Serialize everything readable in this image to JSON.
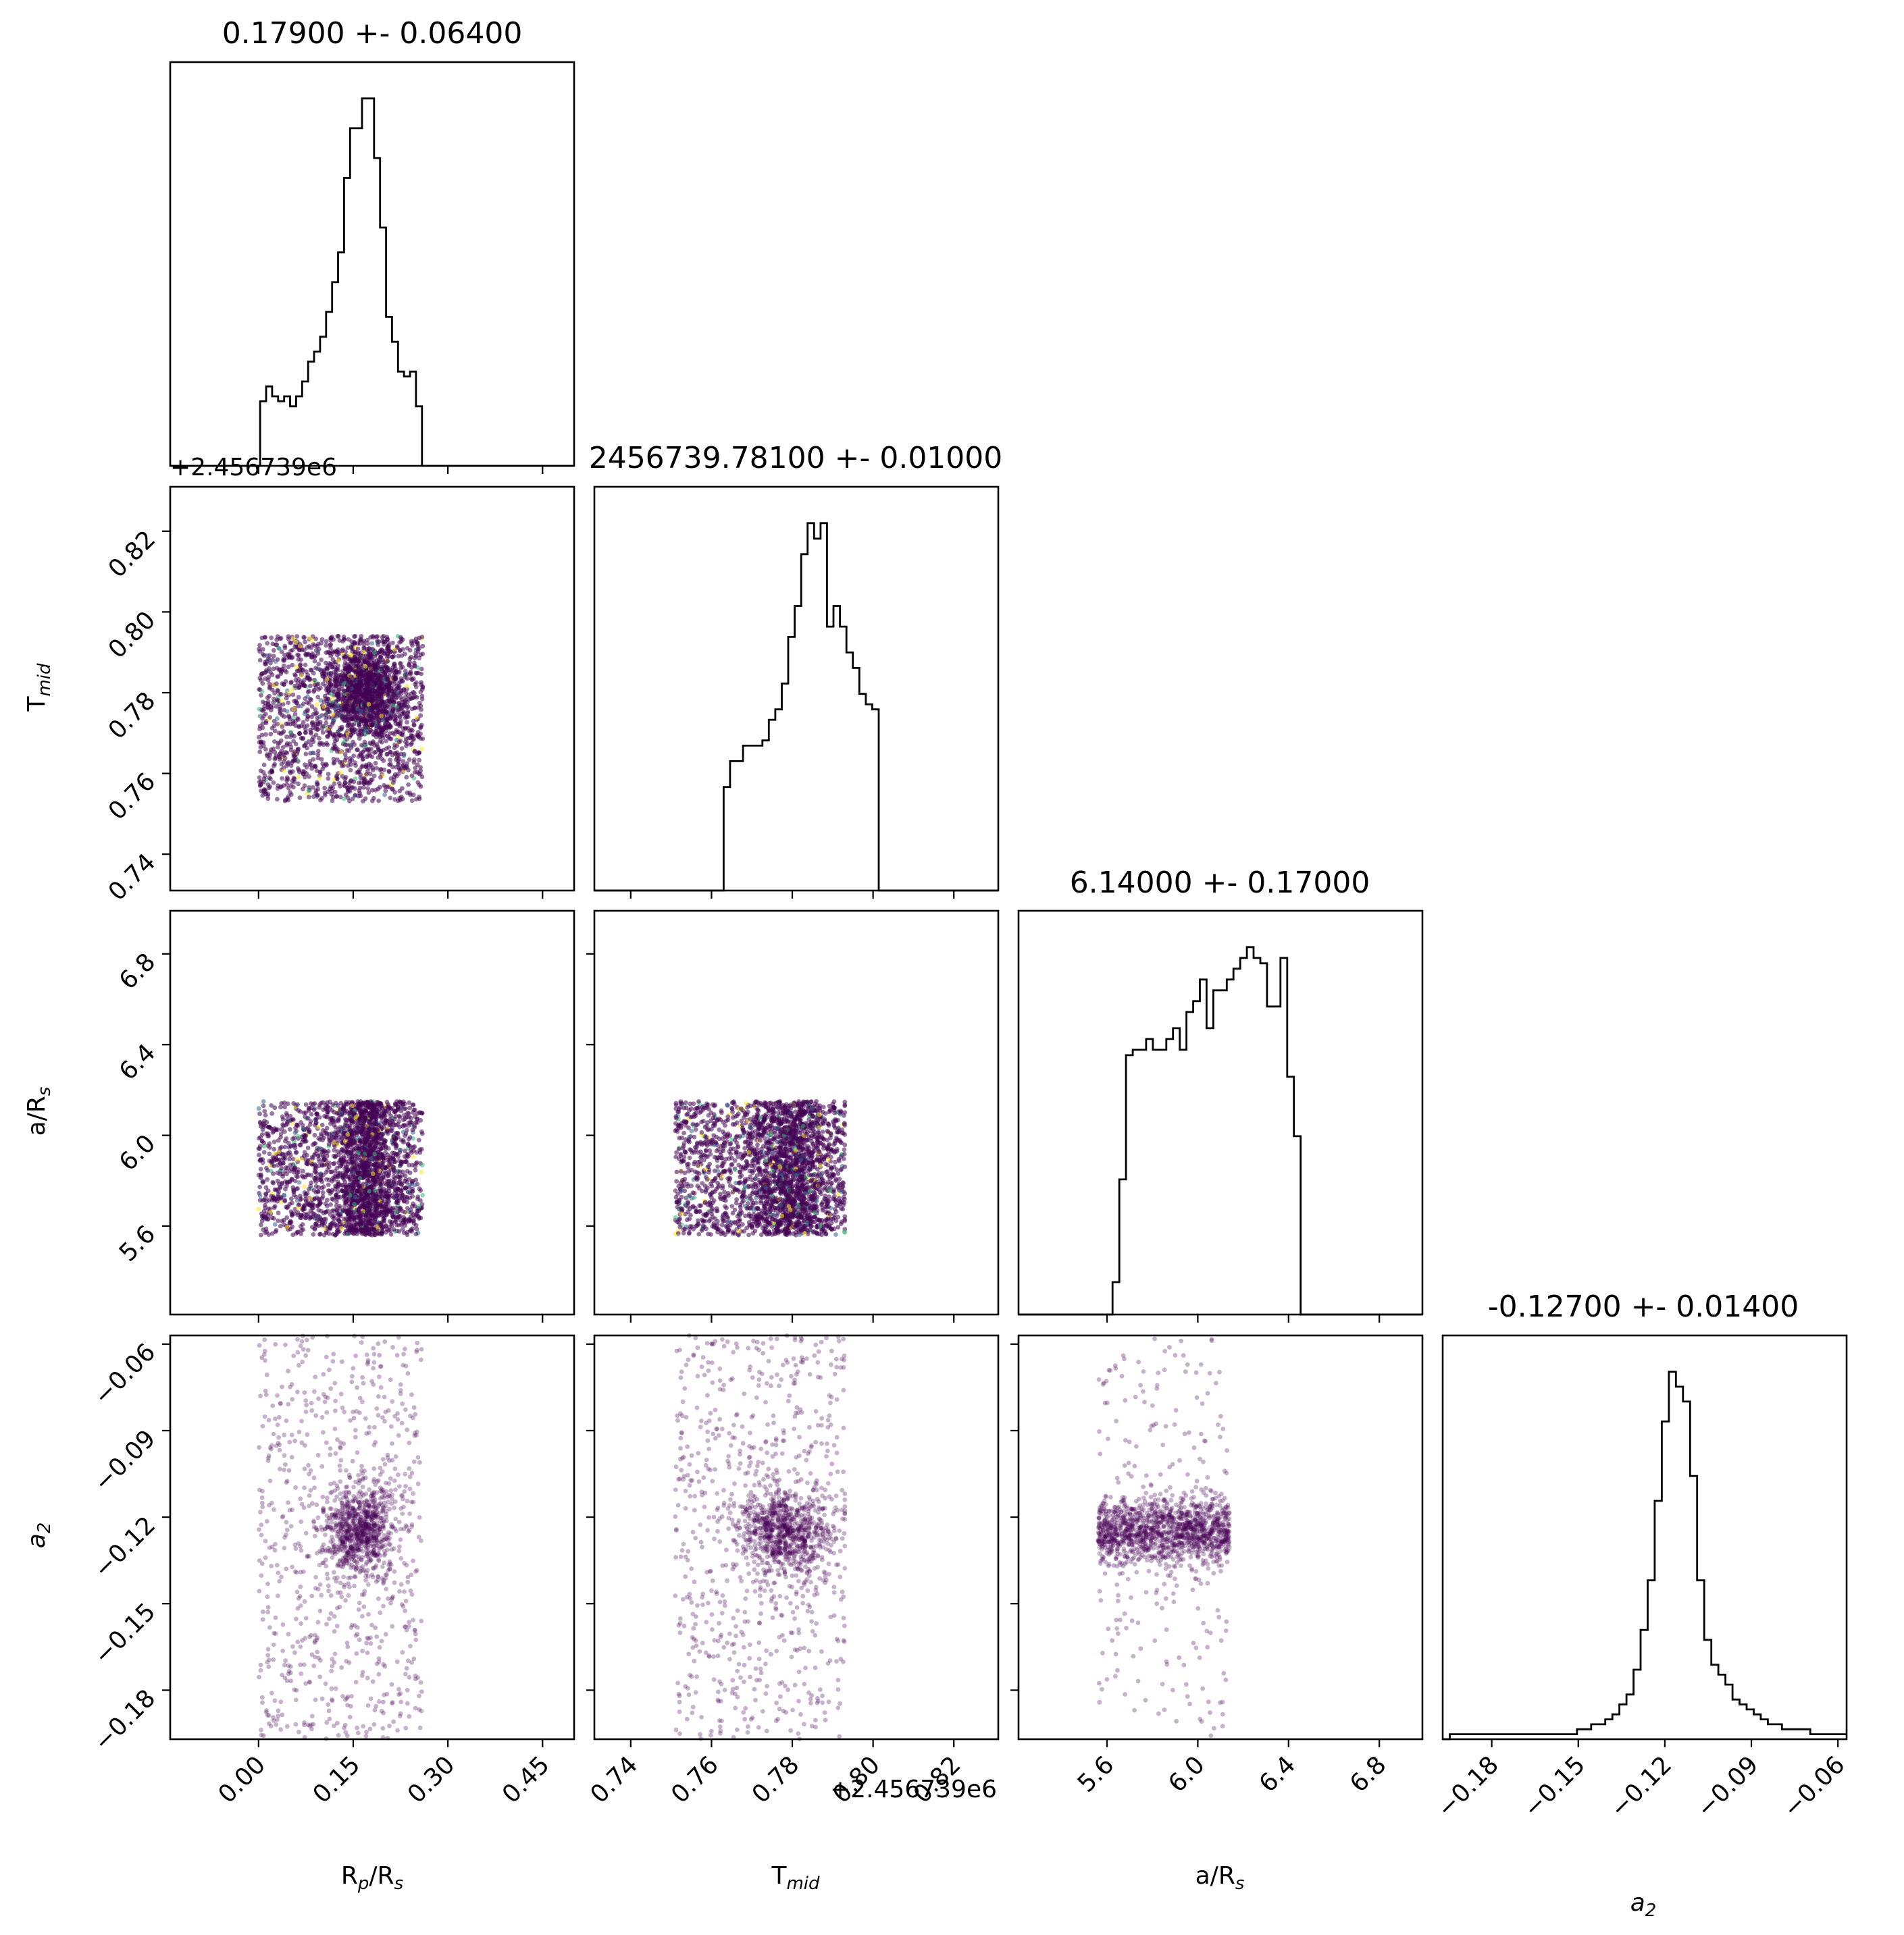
{
  "chart_data": {
    "type": "scatter",
    "kind": "corner-plot",
    "parameters": [
      {
        "key": "rp",
        "label": "R",
        "label_sub1": "p",
        "label_mid": "/R",
        "label_sub2": "s",
        "title": "0.17900 +- 0.06400",
        "range": [
          -0.14,
          0.5
        ],
        "ticks": [
          0.0,
          0.15,
          0.3,
          0.45
        ],
        "tick_labels": [
          "0.00",
          "0.15",
          "0.30",
          "0.45"
        ],
        "hist_bins": [
          -0.14,
          0.5
        ],
        "hist_values": []
      },
      {
        "key": "tmid",
        "label": "T",
        "label_sub1": "mid",
        "title": "2456739.78100 +- 0.01000",
        "offset": "+2.456739e6",
        "range": [
          0.731,
          0.831
        ],
        "ticks": [
          0.74,
          0.76,
          0.78,
          0.8,
          0.82
        ],
        "tick_labels": [
          "0.74",
          "0.76",
          "0.78",
          "0.80",
          "0.82"
        ]
      },
      {
        "key": "ars",
        "label": "a/R",
        "label_sub1": "s",
        "title": "6.14000 +- 0.17000",
        "range": [
          5.21,
          6.99
        ],
        "ticks": [
          5.6,
          6.0,
          6.4,
          6.8
        ],
        "tick_labels": [
          "5.6",
          "6.0",
          "6.4",
          "6.8"
        ]
      },
      {
        "key": "a2",
        "label": "a",
        "label_sub1": "2",
        "title": "-0.12700 +- 0.01400",
        "range": [
          -0.197,
          -0.057
        ],
        "ticks": [
          -0.18,
          -0.15,
          -0.12,
          -0.09,
          -0.06
        ],
        "tick_labels": [
          "−0.18",
          "−0.15",
          "−0.12",
          "−0.09",
          "−0.06"
        ]
      }
    ],
    "histograms": {
      "rp": {
        "edges_start": -0.14,
        "bin_width": 0.0095,
        "values": [
          0,
          0,
          0,
          0,
          0,
          0,
          0,
          0,
          0,
          0,
          0,
          0,
          0,
          0,
          0,
          13,
          16,
          14,
          13,
          14,
          12,
          14,
          17,
          21,
          23,
          26,
          31,
          37,
          43,
          58,
          68,
          68,
          74,
          74,
          62,
          48,
          30,
          25,
          19,
          18,
          19,
          12,
          0,
          0,
          0,
          0,
          0,
          0,
          0,
          0,
          0,
          0,
          0,
          0,
          0,
          0,
          0,
          0,
          0,
          0,
          0,
          0,
          0,
          0,
          0,
          0,
          0,
          0
        ]
      },
      "tmid": {
        "edges_start": 0.731,
        "bin_width": 0.0016,
        "values": [
          0,
          0,
          0,
          0,
          0,
          0,
          0,
          0,
          0,
          0,
          0,
          0,
          0,
          0,
          0,
          0,
          0,
          0,
          0,
          0,
          20,
          25,
          25,
          28,
          28,
          28,
          29,
          33,
          35,
          40,
          49,
          55,
          65,
          71,
          68,
          71,
          51,
          55,
          51,
          46,
          43,
          38,
          36,
          35,
          0,
          0,
          0,
          0,
          0,
          0,
          0,
          0,
          0,
          0,
          0,
          0,
          0,
          0,
          0,
          0,
          0,
          0,
          0
        ]
      },
      "ars": {
        "edges_start": 5.21,
        "bin_width": 0.0296,
        "values": [
          0,
          0,
          0,
          0,
          0,
          0,
          0,
          0,
          0,
          0,
          0,
          0,
          0,
          0,
          6,
          25,
          48,
          49,
          49,
          51,
          49,
          49,
          51,
          53,
          49,
          56,
          58,
          62,
          53,
          60,
          60,
          62,
          64,
          66,
          68,
          66,
          65,
          57,
          57,
          66,
          44,
          33,
          0,
          0,
          0,
          0,
          0,
          0,
          0,
          0,
          0,
          0,
          0,
          0,
          0,
          0,
          0,
          0,
          0,
          0
        ]
      },
      "a2": {
        "edges_start": -0.197,
        "bin_width": 0.00245,
        "values": [
          0,
          1,
          1,
          1,
          1,
          1,
          1,
          1,
          1,
          1,
          1,
          1,
          1,
          1,
          1,
          1,
          1,
          1,
          1,
          2,
          2,
          3,
          3,
          4,
          5,
          7,
          9,
          14,
          22,
          32,
          48,
          64,
          74,
          71,
          68,
          53,
          32,
          20,
          15,
          13,
          11,
          8,
          7,
          6,
          5,
          4,
          3,
          3,
          2,
          2,
          2,
          2,
          1,
          1,
          1,
          1,
          1,
          1
        ]
      }
    },
    "scatter_clusters": {
      "rp_tmid": {
        "x_range": [
          0.0,
          0.26
        ],
        "y_range": [
          0.753,
          0.794
        ],
        "core_x": 0.17,
        "core_y": 0.78,
        "core_sx": 0.03,
        "core_sy": 0.006
      },
      "rp_ars": {
        "x_range": [
          0.0,
          0.26
        ],
        "y_range": [
          5.56,
          6.15
        ],
        "core_x": 0.17,
        "core_sx": 0.025
      },
      "tmid_ars": {
        "x_range": [
          0.751,
          0.793
        ],
        "y_range": [
          5.56,
          6.15
        ],
        "core_x": 0.78,
        "core_sx": 0.005
      },
      "rp_a2": {
        "x_range": [
          0.0,
          0.26
        ],
        "y_range": [
          -0.197,
          -0.057
        ],
        "core_x": 0.16,
        "core_y": -0.125,
        "core_sx": 0.03,
        "core_sy": 0.008
      },
      "tmid_a2": {
        "x_range": [
          0.751,
          0.793
        ],
        "y_range": [
          -0.197,
          -0.057
        ],
        "core_x": 0.778,
        "core_y": -0.125,
        "core_sx": 0.006,
        "core_sy": 0.008
      },
      "ars_a2": {
        "x_range": [
          5.56,
          6.14
        ],
        "y_range": [
          -0.197,
          -0.057
        ],
        "core_y": -0.125,
        "core_sy": 0.006
      }
    },
    "point_color": "#440154",
    "halo_colors": [
      "#fde725",
      "#35b779",
      "#31688e"
    ]
  }
}
